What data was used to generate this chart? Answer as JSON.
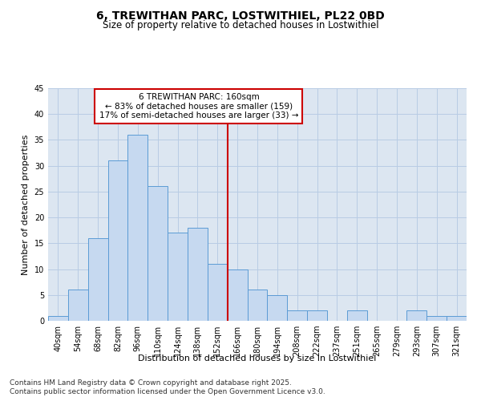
{
  "title1": "6, TREWITHAN PARC, LOSTWITHIEL, PL22 0BD",
  "title2": "Size of property relative to detached houses in Lostwithiel",
  "xlabel": "Distribution of detached houses by size in Lostwithiel",
  "ylabel": "Number of detached properties",
  "categories": [
    "40sqm",
    "54sqm",
    "68sqm",
    "82sqm",
    "96sqm",
    "110sqm",
    "124sqm",
    "138sqm",
    "152sqm",
    "166sqm",
    "180sqm",
    "194sqm",
    "208sqm",
    "222sqm",
    "237sqm",
    "251sqm",
    "265sqm",
    "279sqm",
    "293sqm",
    "307sqm",
    "321sqm"
  ],
  "values": [
    1,
    6,
    16,
    31,
    36,
    26,
    17,
    18,
    11,
    10,
    6,
    5,
    2,
    2,
    0,
    2,
    0,
    0,
    2,
    1,
    1
  ],
  "bar_color": "#c6d9f0",
  "bar_edge_color": "#5b9bd5",
  "grid_color": "#b8cce4",
  "bg_color": "#dce6f1",
  "annotation_line1": "6 TREWITHAN PARC: 160sqm",
  "annotation_line2": "← 83% of detached houses are smaller (159)",
  "annotation_line3": "17% of semi-detached houses are larger (33) →",
  "annotation_box_edge": "#cc0000",
  "vline_color": "#cc0000",
  "ylim": [
    0,
    45
  ],
  "yticks": [
    0,
    5,
    10,
    15,
    20,
    25,
    30,
    35,
    40,
    45
  ],
  "footer_line1": "Contains HM Land Registry data © Crown copyright and database right 2025.",
  "footer_line2": "Contains public sector information licensed under the Open Government Licence v3.0.",
  "title1_fontsize": 10,
  "title2_fontsize": 8.5,
  "xlabel_fontsize": 8,
  "ylabel_fontsize": 8,
  "tick_fontsize": 7,
  "annotation_fontsize": 7.5,
  "footer_fontsize": 6.5
}
